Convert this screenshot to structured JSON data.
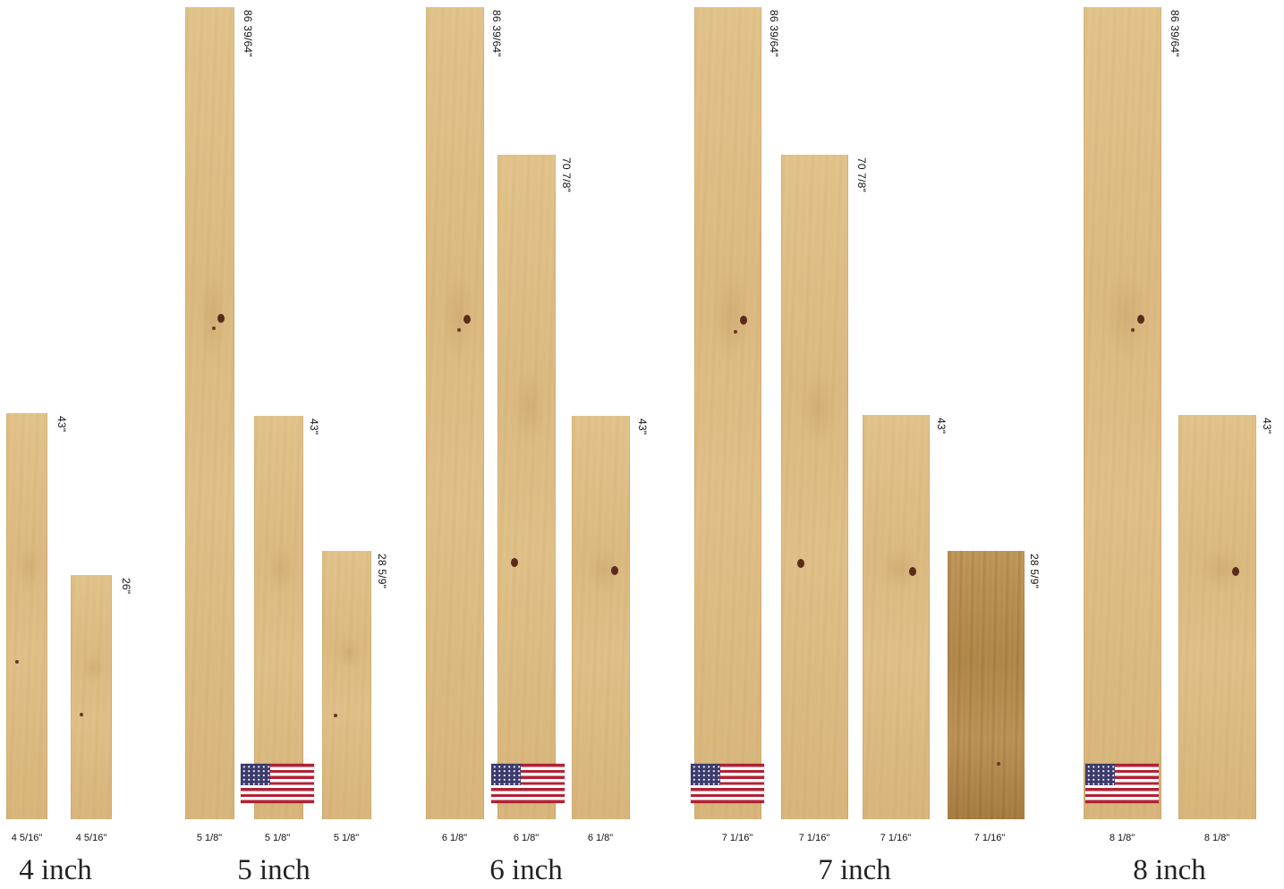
{
  "groups": [
    {
      "label": "4 inch",
      "planks": [
        {
          "length": "43\"",
          "width": "4 5/16\""
        },
        {
          "length": "26\"",
          "width": "4 5/16\""
        }
      ]
    },
    {
      "label": "5 inch",
      "flag": "us-flag-icon",
      "planks": [
        {
          "length": "86 39/64\"",
          "width": "5 1/8\""
        },
        {
          "length": "43\"",
          "width": "5 1/8\""
        },
        {
          "length": "28 5/9\"",
          "width": "5 1/8\""
        }
      ]
    },
    {
      "label": "6 inch",
      "flag": "us-flag-icon",
      "planks": [
        {
          "length": "86 39/64\"",
          "width": "6 1/8\""
        },
        {
          "length": "70 7/8\"",
          "width": "6 1/8\""
        },
        {
          "length": "43\"",
          "width": "6 1/8\""
        }
      ]
    },
    {
      "label": "7 inch",
      "flag": "us-flag-icon",
      "planks": [
        {
          "length": "86 39/64\"",
          "width": "7 1/16\""
        },
        {
          "length": "70 7/8\"",
          "width": "7 1/16\""
        },
        {
          "length": "43\"",
          "width": "7 1/16\""
        },
        {
          "length": "28 5/9\"",
          "width": "7 1/16\""
        }
      ]
    },
    {
      "label": "8 inch",
      "flag": "us-flag-icon",
      "planks": [
        {
          "length": "86 39/64\"",
          "width": "8 1/8\""
        },
        {
          "length": "43\"",
          "width": "8 1/8\""
        }
      ]
    }
  ],
  "colors": {
    "wood_light": "#dcbb82",
    "wood_dark": "#b48a4c",
    "flag_red": "#b22234",
    "flag_blue": "#3c3b6e"
  }
}
